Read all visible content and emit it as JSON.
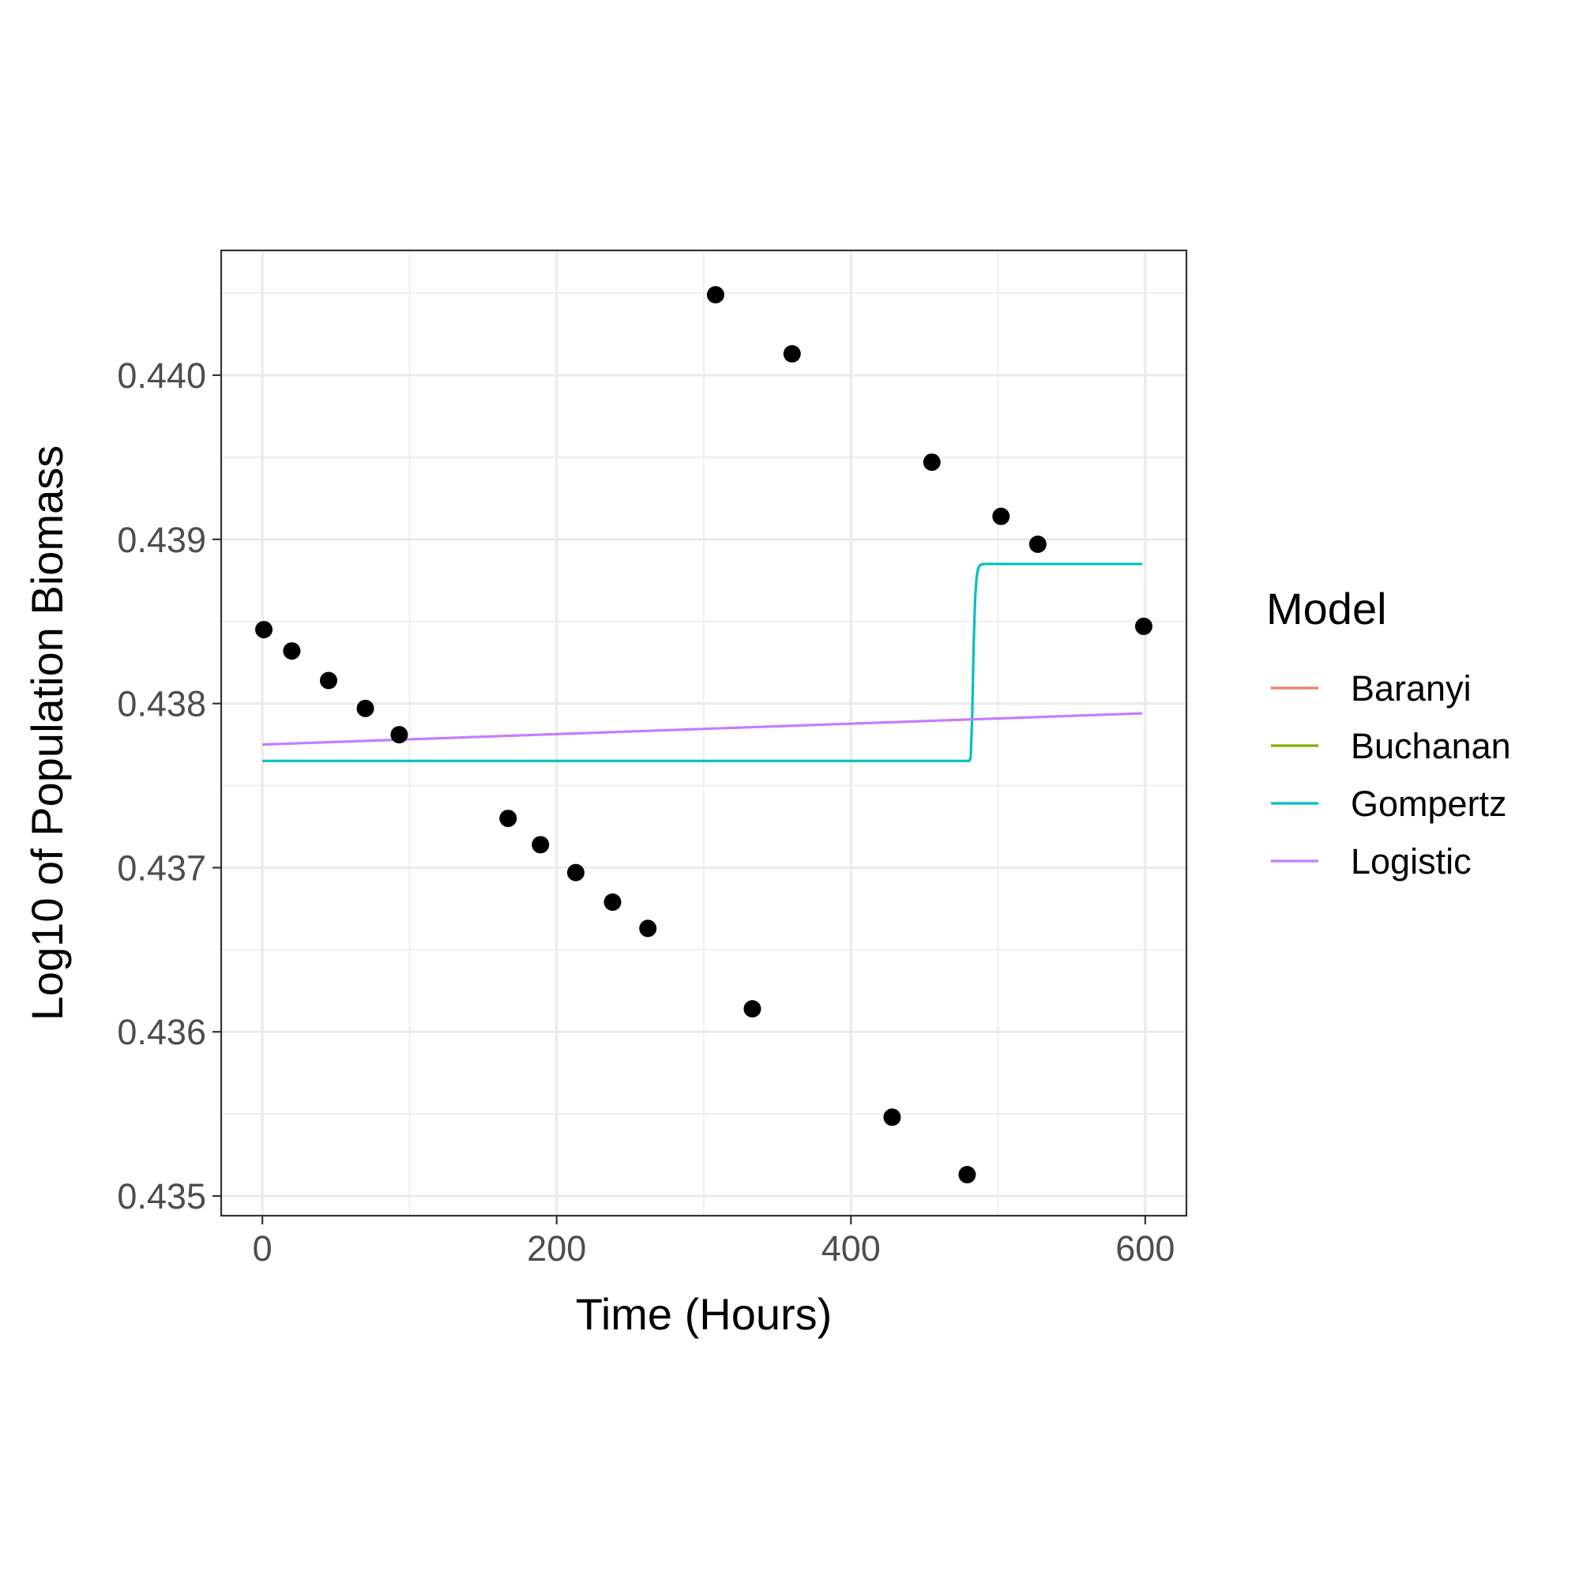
{
  "chart_data": {
    "type": "scatter",
    "xlabel": "Time (Hours)",
    "ylabel": "Log10 of Population Biomass",
    "xlim": [
      -28,
      628
    ],
    "ylim": [
      0.43488,
      0.44076
    ],
    "xticks": [
      0,
      200,
      400,
      600
    ],
    "yticks": [
      0.435,
      0.436,
      0.437,
      0.438,
      0.439,
      0.44
    ],
    "ytick_labels": [
      "0.435",
      "0.436",
      "0.437",
      "0.438",
      "0.439",
      "0.440"
    ],
    "grid": true,
    "legend": {
      "title": "Model",
      "position": "right",
      "entries": [
        {
          "label": "Baranyi",
          "color": "#F8766D"
        },
        {
          "label": "Buchanan",
          "color": "#7CAE00"
        },
        {
          "label": "Gompertz",
          "color": "#00BFC4"
        },
        {
          "label": "Logistic",
          "color": "#C77CFF"
        }
      ]
    },
    "points": {
      "color": "#000000",
      "x": [
        1,
        20,
        45,
        70,
        93,
        167,
        189,
        213,
        238,
        262,
        308,
        333,
        360,
        428,
        455,
        479,
        502,
        527,
        599
      ],
      "y": [
        0.43845,
        0.43832,
        0.43814,
        0.43797,
        0.43781,
        0.4373,
        0.43714,
        0.43697,
        0.43679,
        0.43663,
        0.44049,
        0.43614,
        0.44013,
        0.43548,
        0.43947,
        0.43513,
        0.43914,
        0.43897,
        0.43847
      ]
    },
    "series": [
      {
        "name": "Gompertz",
        "color": "#00BFC4",
        "model": "gompertz",
        "x_range": [
          0,
          598
        ],
        "params": {
          "n0": 0.43765,
          "a": 0.0012,
          "mu": 0.00045,
          "lag": 481.8
        }
      },
      {
        "name": "Logistic",
        "color": "#C77CFF",
        "model": "linear",
        "x_range": [
          0,
          598
        ],
        "params": {
          "y0": 0.43775,
          "y1": 0.43794
        }
      }
    ]
  }
}
